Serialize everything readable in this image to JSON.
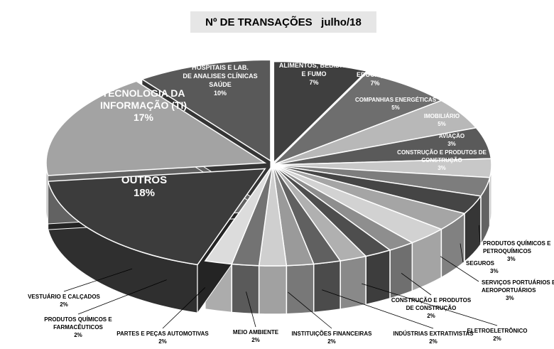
{
  "chart_data": {
    "type": "pie",
    "title": "Nº DE TRANSAÇÕES   julho/18",
    "slices": [
      {
        "label_lines": [
          "ALIMENTOS, BEBIDAS",
          "E FUMO"
        ],
        "value": 7,
        "value_label": "7%",
        "color": "#3f3f3f"
      },
      {
        "label_lines": [
          "EDUCAÇÃO"
        ],
        "value": 7,
        "value_label": "7%",
        "color": "#6e6e6e"
      },
      {
        "label_lines": [
          "COMPANHIAS ENERGÉTICAS"
        ],
        "value": 5,
        "value_label": "5%",
        "color": "#b8b8b8"
      },
      {
        "label_lines": [
          "IMOBILIÁRIO"
        ],
        "value": 5,
        "value_label": "5%",
        "color": "#5a5a5a"
      },
      {
        "label_lines": [
          "AVIAÇÃO"
        ],
        "value": 3,
        "value_label": "3%",
        "color": "#c8c8c8"
      },
      {
        "label_lines": [
          "CONSTRUÇÃO E PRODUTOS DE",
          "CONSTRUÇÃO"
        ],
        "value": 3,
        "value_label": "3%",
        "color": "#7d7d7d"
      },
      {
        "label_lines": [
          "PRODUTOS QUÍMICOS E",
          "PETROQUÍMICOS"
        ],
        "value": 3,
        "value_label": "3%",
        "color": "#454545"
      },
      {
        "label_lines": [
          "SEGUROS"
        ],
        "value": 3,
        "value_label": "3%",
        "color": "#a5a5a5"
      },
      {
        "label_lines": [
          "SERVIÇOS PORTUÁRIOS E",
          "AEROPORTUÁRIOS"
        ],
        "value": 3,
        "value_label": "3%",
        "color": "#d2d2d2"
      },
      {
        "label_lines": [
          "CONSTRUÇÃO E PRODUTOS",
          "DE CONSTRUÇÃO"
        ],
        "value": 2,
        "value_label": "2%",
        "color": "#8e8e8e"
      },
      {
        "label_lines": [
          "ELETROELETRÔNICO"
        ],
        "value": 2,
        "value_label": "2%",
        "color": "#4e4e4e"
      },
      {
        "label_lines": [
          "INDÚSTRIAS EXTRATIVISTAS"
        ],
        "value": 2,
        "value_label": "2%",
        "color": "#b0b0b0"
      },
      {
        "label_lines": [
          "INSTITUIÇÕES FINANCEIRAS"
        ],
        "value": 2,
        "value_label": "2%",
        "color": "#606060"
      },
      {
        "label_lines": [
          "MEIO AMBIENTE"
        ],
        "value": 2,
        "value_label": "2%",
        "color": "#9a9a9a"
      },
      {
        "label_lines": [
          "PARTES E PEÇAS AUTOMOTIVAS"
        ],
        "value": 2,
        "value_label": "2%",
        "color": "#cfcfcf"
      },
      {
        "label_lines": [
          "PRODUTOS QUÍMICOS E",
          "FARMACÊUTICOS"
        ],
        "value": 2,
        "value_label": "2%",
        "color": "#737373"
      },
      {
        "label_lines": [
          "VESTUÁRIO E CALÇADOS"
        ],
        "value": 2,
        "value_label": "2%",
        "color": "#dcdcdc"
      },
      {
        "label_lines": [
          "OUTROS"
        ],
        "value": 18,
        "value_label": "18%",
        "color": "#3c3c3c"
      },
      {
        "label_lines": [
          "TECNOLOGIA DA",
          "INFORMAÇÃO (TI)"
        ],
        "value": 17,
        "value_label": "17%",
        "color": "#a3a3a3"
      },
      {
        "label_lines": [
          "HOSPITAIS E LAB.",
          "DE ANALISES CLÍNICAS",
          "SAÚDE"
        ],
        "value": 10,
        "value_label": "10%",
        "color": "#595959"
      }
    ]
  }
}
